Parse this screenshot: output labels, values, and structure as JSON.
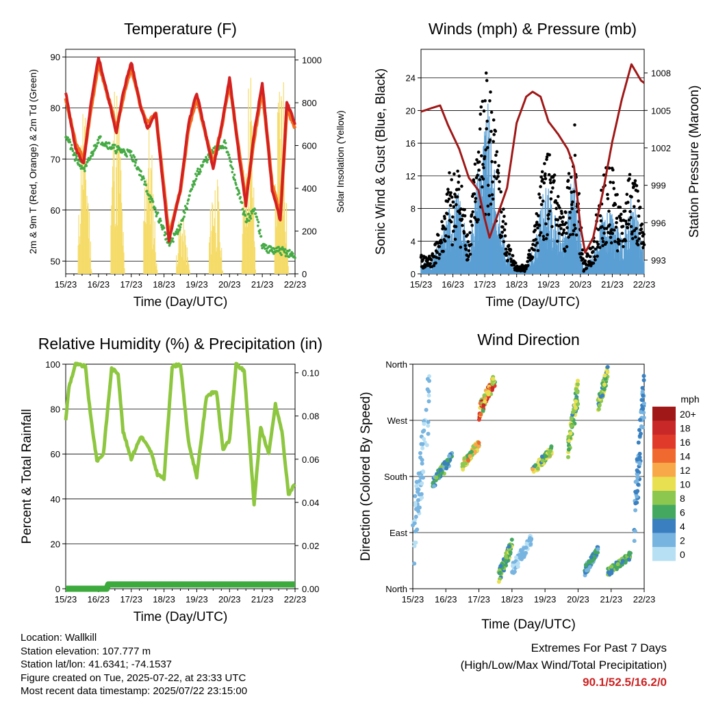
{
  "colors": {
    "temp_2m": "#d42020",
    "temp_9m": "#f07020",
    "dewpoint": "#44aa44",
    "solar": "#f5dc6a",
    "wind": "#5a9fd4",
    "gust": "#000000",
    "pressure": "#a01818",
    "rh": "#8dc63f",
    "precip": "#3caa3c",
    "extremes": "#cc2222"
  },
  "x_tick_labels": [
    "15/23",
    "16/23",
    "17/23",
    "18/23",
    "19/23",
    "20/23",
    "21/23",
    "22/23"
  ],
  "charts": {
    "temperature": {
      "title": "Temperature (F)",
      "xlabel": "Time (Day/UTC)",
      "ylabel": "2m & 9m T (Red, Orange) & 2m Td (Green)",
      "y2label": "Solar Insolation (Yellow)",
      "y_ticks": [
        "50",
        "60",
        "70",
        "80",
        "90"
      ],
      "y2_ticks": [
        "0",
        "200",
        "400",
        "600",
        "800",
        "1000"
      ]
    },
    "winds": {
      "title": "Winds (mph) & Pressure (mb)",
      "xlabel": "Time (Day/UTC)",
      "ylabel": "Sonic Wind & Gust (Blue, Black)",
      "y2label": "Station Pressure (Maroon)",
      "y_ticks": [
        "0",
        "4",
        "8",
        "12",
        "16",
        "20",
        "24"
      ],
      "y2_ticks": [
        "993",
        "996",
        "999",
        "1002",
        "1005",
        "1008"
      ]
    },
    "humidity": {
      "title": "Relative Humidity (%) & Precipitation (in)",
      "xlabel": "Time (Day/UTC)",
      "ylabel": "Percent & Total Rainfall",
      "y_ticks": [
        "0",
        "20",
        "40",
        "60",
        "80",
        "100"
      ],
      "y2_ticks": [
        "0.00",
        "0.02",
        "0.04",
        "0.06",
        "0.08",
        "0.10"
      ]
    },
    "wind_direction": {
      "title": "Wind Direction",
      "xlabel": "Time (Day/UTC)",
      "ylabel": "Direction (Colored By Speed)",
      "y_ticks": [
        "North",
        "East",
        "South",
        "West",
        "North"
      ],
      "legend_title": "mph",
      "legend_labels": [
        "20+",
        "18",
        "16",
        "14",
        "12",
        "10",
        "8",
        "6",
        "4",
        "2",
        "0"
      ],
      "legend_colors": [
        "#a01818",
        "#c82828",
        "#e03a2a",
        "#f06a30",
        "#f8a848",
        "#e8e050",
        "#8cc850",
        "#44a860",
        "#3a80c0",
        "#78b4e0",
        "#b8e0f4"
      ]
    }
  },
  "chart_data": [
    {
      "type": "line",
      "title": "Temperature (F)",
      "xlabel": "Time (Day/UTC)",
      "ylabel": "2m & 9m T (Red, Orange) & 2m Td (Green)",
      "y2label": "Solar Insolation (Yellow)",
      "x_days": [
        0,
        7
      ],
      "ylim": [
        47.5,
        91.5
      ],
      "y2lim": [
        0,
        1050
      ],
      "series": [
        {
          "key": "temp_2m",
          "x": [
            0,
            0.3,
            0.55,
            0.75,
            1.0,
            1.3,
            1.55,
            1.75,
            2.0,
            2.3,
            2.5,
            2.75,
            3.0,
            3.15,
            3.5,
            3.75,
            4.0,
            4.3,
            4.5,
            4.75,
            5.0,
            5.3,
            5.5,
            5.75,
            6.0,
            6.3,
            6.55,
            6.75,
            7.0
          ],
          "y": [
            83,
            72,
            69,
            80,
            90,
            82,
            75,
            83,
            89,
            80,
            76,
            79,
            63,
            54,
            64,
            77,
            83,
            74,
            68,
            76,
            86,
            70,
            61,
            75,
            85,
            64,
            58,
            81,
            77
          ]
        },
        {
          "key": "temp_9m",
          "x": [
            0,
            0.3,
            0.55,
            0.75,
            1.0,
            1.3,
            1.55,
            1.75,
            2.0,
            2.3,
            2.5,
            2.75,
            3.0,
            3.15,
            3.5,
            3.75,
            4.0,
            4.3,
            4.5,
            4.75,
            5.0,
            5.3,
            5.5,
            5.75,
            6.0,
            6.3,
            6.55,
            6.75,
            7.0
          ],
          "y": [
            82,
            73,
            70,
            79,
            89,
            82,
            76,
            82,
            88,
            80,
            77,
            79,
            64,
            55,
            64,
            76,
            82,
            74,
            69,
            76,
            85,
            71,
            62,
            74,
            84,
            65,
            59,
            80,
            76
          ]
        },
        {
          "key": "dewpoint",
          "x": [
            0,
            0.3,
            0.6,
            1.0,
            1.5,
            2.0,
            2.3,
            2.6,
            3.0,
            3.15,
            3.5,
            3.8,
            4.0,
            4.3,
            4.6,
            4.85,
            5.0,
            5.2,
            5.5,
            5.8,
            6.0,
            6.3,
            6.6,
            7.0
          ],
          "y": [
            75,
            70,
            68,
            74,
            72,
            71,
            67,
            62,
            56,
            53,
            57,
            63,
            67,
            70,
            72,
            73,
            70,
            65,
            58,
            60,
            53,
            52,
            52,
            51
          ]
        },
        {
          "key": "solar",
          "x": [
            0,
            0.35,
            0.5,
            0.65,
            0.8,
            1.3,
            1.5,
            1.65,
            1.8,
            2.3,
            2.5,
            2.65,
            2.8,
            3.3,
            3.5,
            3.65,
            3.8,
            4.3,
            4.5,
            4.65,
            4.8,
            5.3,
            5.5,
            5.65,
            5.8,
            6.3,
            6.5,
            6.65,
            6.8,
            7.0
          ],
          "y2": [
            0,
            0,
            850,
            600,
            0,
            0,
            950,
            700,
            0,
            0,
            800,
            500,
            0,
            0,
            300,
            200,
            0,
            0,
            500,
            400,
            0,
            0,
            700,
            1000,
            0,
            0,
            900,
            1020,
            0,
            0
          ]
        }
      ]
    },
    {
      "type": "line",
      "title": "Winds (mph) & Pressure (mb)",
      "xlabel": "Time (Day/UTC)",
      "ylabel": "Sonic Wind & Gust (Blue, Black)",
      "y2label": "Station Pressure (Maroon)",
      "x_days": [
        0,
        7
      ],
      "ylim": [
        0,
        27.5
      ],
      "y2lim": [
        991.9,
        1009.9
      ],
      "series": [
        {
          "key": "wind",
          "x": [
            0,
            0.3,
            0.6,
            0.9,
            1.2,
            1.5,
            1.8,
            2.1,
            2.4,
            2.7,
            3.0,
            3.3,
            3.6,
            3.9,
            4.2,
            4.5,
            4.8,
            5.1,
            5.4,
            5.7,
            6.0,
            6.3,
            6.6,
            7.0
          ],
          "y": [
            1,
            1,
            3,
            6,
            7,
            2,
            10,
            14,
            6,
            2,
            0.5,
            0.5,
            3,
            8,
            5,
            3,
            10,
            0.5,
            2,
            5,
            5,
            3,
            7,
            2
          ]
        },
        {
          "key": "gust",
          "x": [
            0,
            0.3,
            0.6,
            0.9,
            1.2,
            1.5,
            1.8,
            2.1,
            2.4,
            2.7,
            3.0,
            3.3,
            3.6,
            3.9,
            4.2,
            4.5,
            4.8,
            5.1,
            5.4,
            5.7,
            6.0,
            6.3,
            6.6,
            7.0
          ],
          "y": [
            2,
            2,
            5,
            11,
            12,
            4,
            17,
            24,
            13,
            4,
            1,
            1,
            6,
            14,
            11,
            6,
            17,
            1,
            4,
            11,
            12,
            6,
            14,
            4
          ]
        },
        {
          "key": "pressure",
          "x": [
            0,
            0.35,
            0.6,
            0.85,
            1.2,
            1.5,
            1.8,
            2.0,
            2.15,
            2.4,
            2.7,
            3.0,
            3.3,
            3.5,
            3.75,
            4.0,
            4.3,
            4.6,
            4.8,
            5.0,
            5.15,
            5.4,
            5.7,
            6.0,
            6.3,
            6.6,
            6.9,
            7.0
          ],
          "y2": [
            1004.9,
            1005.2,
            1005.4,
            1003.8,
            1001.9,
            999.6,
            998.6,
            996.3,
            994.8,
            996.6,
            998.8,
            1004.0,
            1006.1,
            1006.5,
            1006.1,
            1004.1,
            1003.1,
            1001.9,
            1000.5,
            995.7,
            993.6,
            994.8,
            998.4,
            1002.5,
            1005.9,
            1008.7,
            1007.4,
            1007.2
          ]
        }
      ]
    },
    {
      "type": "line",
      "title": "Relative Humidity (%) & Precipitation (in)",
      "xlabel": "Time (Day/UTC)",
      "ylabel": "Percent & Total Rainfall",
      "x_days": [
        0,
        7
      ],
      "ylim": [
        0,
        100
      ],
      "y2lim": [
        0.0,
        0.104
      ],
      "series": [
        {
          "key": "rh",
          "x": [
            0,
            0.1,
            0.3,
            0.6,
            0.75,
            0.95,
            1.15,
            1.4,
            1.6,
            1.75,
            2.0,
            2.3,
            2.6,
            2.8,
            3.0,
            3.25,
            3.5,
            3.75,
            4.0,
            4.3,
            4.6,
            4.8,
            5.0,
            5.2,
            5.45,
            5.75,
            5.95,
            6.2,
            6.4,
            6.6,
            6.8,
            7.0
          ],
          "y": [
            75,
            90,
            100,
            99,
            78,
            57,
            60,
            98,
            96,
            70,
            58,
            68,
            61,
            51,
            49,
            99,
            100,
            65,
            50,
            86,
            88,
            62,
            66,
            100,
            97,
            38,
            72,
            60,
            82,
            70,
            42,
            47
          ]
        },
        {
          "key": "precip",
          "x": [
            0,
            1.25,
            1.3,
            7.0
          ],
          "y2": [
            0.0,
            0.0,
            0.002,
            0.002
          ]
        }
      ]
    },
    {
      "type": "scatter",
      "title": "Wind Direction",
      "xlabel": "Time (Day/UTC)",
      "ylabel": "Direction (Colored By Speed)",
      "x_days": [
        0,
        7
      ],
      "ylim_deg": [
        0,
        360
      ],
      "legend_title": "mph",
      "clusters": [
        {
          "x0": 0.0,
          "x1": 0.5,
          "d0": 10,
          "d1": 360,
          "s0": 0,
          "s1": 3
        },
        {
          "x0": 0.6,
          "x1": 1.2,
          "d0": 160,
          "d1": 220,
          "s0": 2,
          "s1": 8
        },
        {
          "x0": 1.5,
          "x1": 2.0,
          "d0": 190,
          "d1": 240,
          "s0": 6,
          "s1": 14
        },
        {
          "x0": 2.0,
          "x1": 2.5,
          "d0": 270,
          "d1": 350,
          "s0": 6,
          "s1": 18
        },
        {
          "x0": 2.6,
          "x1": 3.0,
          "d0": 10,
          "d1": 80,
          "s0": 4,
          "s1": 10
        },
        {
          "x0": 3.0,
          "x1": 3.6,
          "d0": 20,
          "d1": 90,
          "s0": 0,
          "s1": 3
        },
        {
          "x0": 3.6,
          "x1": 4.2,
          "d0": 180,
          "d1": 230,
          "s0": 4,
          "s1": 12
        },
        {
          "x0": 4.7,
          "x1": 5.0,
          "d0": 200,
          "d1": 340,
          "s0": 4,
          "s1": 10
        },
        {
          "x0": 5.2,
          "x1": 5.6,
          "d0": 20,
          "d1": 70,
          "s0": 2,
          "s1": 6
        },
        {
          "x0": 5.6,
          "x1": 5.9,
          "d0": 280,
          "d1": 360,
          "s0": 4,
          "s1": 10
        },
        {
          "x0": 5.9,
          "x1": 6.6,
          "d0": 20,
          "d1": 60,
          "s0": 4,
          "s1": 8
        },
        {
          "x0": 6.7,
          "x1": 7.0,
          "d0": 60,
          "d1": 360,
          "s0": 1,
          "s1": 5
        }
      ]
    }
  ],
  "footer": {
    "location": "Location: Wallkill",
    "elevation": "Station elevation: 107.777 m",
    "latlon": "Station lat/lon: 41.6341; -74.1537",
    "created": "Figure created on Tue, 2025-07-22, at 23:33 UTC",
    "recent": "Most recent data timestamp: 2025/07/22 23:15:00",
    "extremes_title": "Extremes For Past 7 Days",
    "extremes_sub": "(High/Low/Max Wind/Total Precipitation)",
    "extremes_values": "90.1/52.5/16.2/0"
  }
}
